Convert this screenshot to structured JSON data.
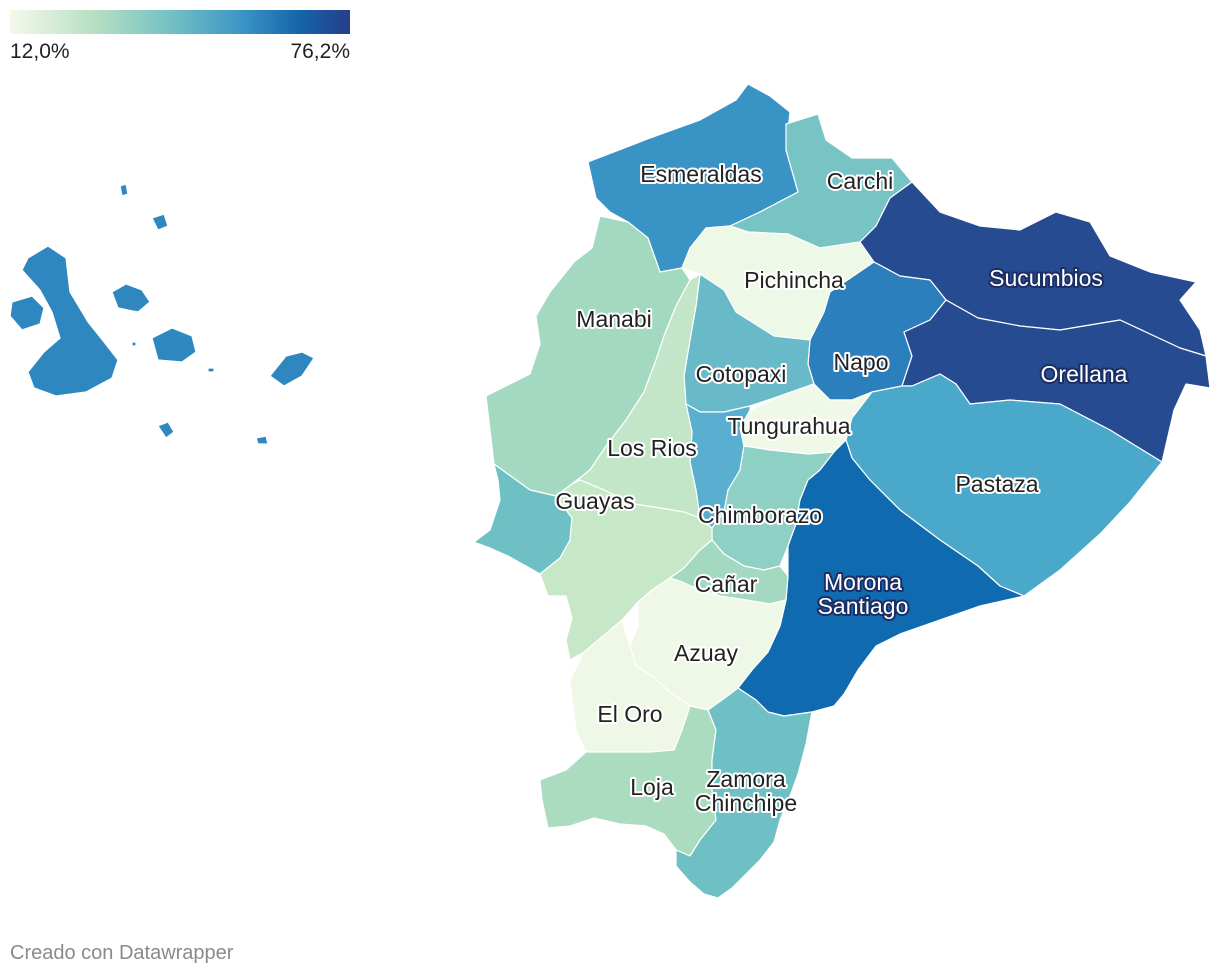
{
  "legend": {
    "min_label": "12,0%",
    "max_label": "76,2%",
    "colors": [
      "#f5faea",
      "#b6dfc2",
      "#79c4c4",
      "#3d95c6",
      "#1565aa",
      "#263e8b"
    ]
  },
  "footer": "Creado con Datawrapper",
  "regions": {
    "galapagos": {
      "name": "",
      "color": "#2f87c0"
    },
    "esmeraldas": {
      "name": "Esmeraldas",
      "color": "#3a93c5"
    },
    "carchi": {
      "name": "Carchi",
      "color": "#78c3c4"
    },
    "pichincha": {
      "name": "Pichincha",
      "color": "#eef8e6"
    },
    "sucumbios": {
      "name": "Sucumbios",
      "color": "#264b90"
    },
    "manabi": {
      "name": "Manabi",
      "color": "#a3d9c1"
    },
    "napo": {
      "name": "Napo",
      "color": "#2b7fbc"
    },
    "cotopaxi": {
      "name": "Cotopaxi",
      "color": "#68bac8"
    },
    "orellana": {
      "name": "Orellana",
      "color": "#264b90"
    },
    "tungurahua": {
      "name": "Tungurahua",
      "color": "#f0f8e8"
    },
    "los_rios": {
      "name": "Los Rios",
      "color": "#c3e6c8"
    },
    "guayas": {
      "name": "Guayas",
      "color": "#c7e8c6"
    },
    "pastaza": {
      "name": "Pastaza",
      "color": "#4aa8cb"
    },
    "chimborazo": {
      "name": "Chimborazo",
      "color": "#8fd0c5"
    },
    "bolivar": {
      "name": "",
      "color": "#5aaed0"
    },
    "santa_elena": {
      "name": "",
      "color": "#6fc0c5"
    },
    "morona_santiago": {
      "name": "Morona\nSantiago",
      "color": "#0f6aaf"
    },
    "canar": {
      "name": "Cañar",
      "color": "#a3d9c1"
    },
    "azuay": {
      "name": "Azuay",
      "color": "#eff8e6"
    },
    "el_oro": {
      "name": "El Oro",
      "color": "#eff8e6"
    },
    "loja": {
      "name": "Loja",
      "color": "#abdcbf"
    },
    "zamora_chinchipe": {
      "name": "Zamora\nChinchipe",
      "color": "#6fc0c5"
    }
  }
}
